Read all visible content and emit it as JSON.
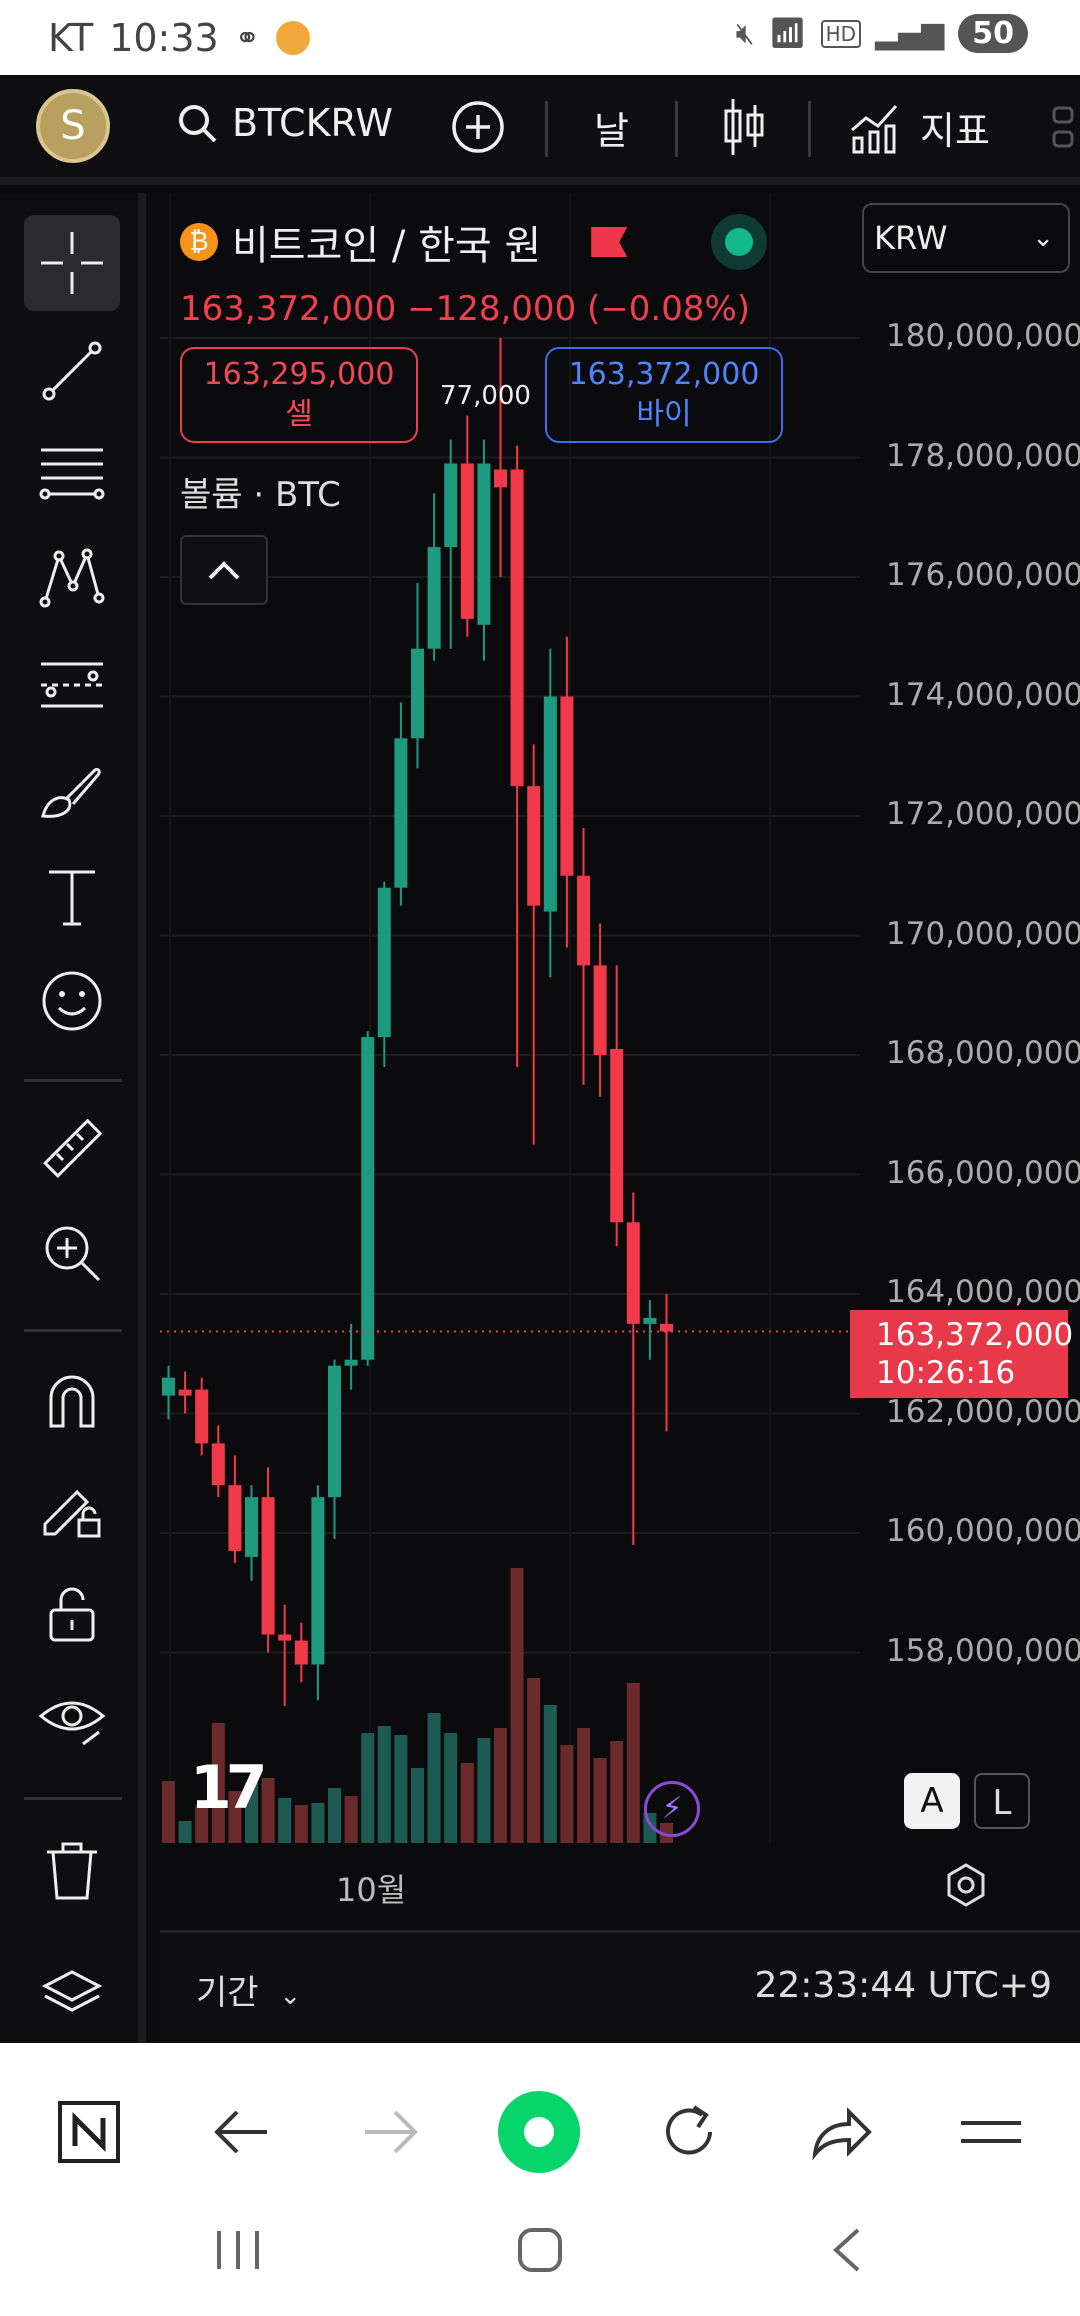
{
  "status_bar": {
    "carrier": "KT",
    "time": "10:33",
    "battery": "50"
  },
  "toolbar": {
    "avatar_letter": "S",
    "symbol": "BTCKRW",
    "interval": "날",
    "indicators": "지표"
  },
  "chart_header": {
    "title": "비트코인 / 한국 원",
    "price_change": "163,372,000  −128,000 (−0.08%)",
    "sell_price": "163,295,000",
    "sell_label": "셀",
    "spread": "77,000",
    "buy_price": "163,372,000",
    "buy_label": "바이",
    "volume_label": "볼륨 · BTC",
    "currency": "KRW"
  },
  "last_price_tag": {
    "price": "163,372,000",
    "countdown": "10:26:16"
  },
  "price_scale_buttons": {
    "auto": "A",
    "log": "L"
  },
  "footer": {
    "period": "기간",
    "clock": "22:33:44 UTC+9"
  },
  "colors": {
    "up": "#1e9b7e",
    "down": "#f03a4a",
    "up_volume": "#1d5a52",
    "down_volume": "#6b2a2c",
    "background": "#0b0b0d"
  },
  "chart_data": {
    "type": "candlestick",
    "x_tick_labels": [
      "10월"
    ],
    "y_ticks": [
      "180,000,000",
      "178,000,000",
      "176,000,000",
      "174,000,000",
      "172,000,000",
      "170,000,000",
      "168,000,000",
      "166,000,000",
      "164,000,000",
      "162,000,000",
      "160,000,000",
      "158,000,000"
    ],
    "ylim": [
      156000000,
      181000000
    ],
    "last_price": 163372000,
    "candles": [
      {
        "o": 162300000,
        "h": 162800000,
        "l": 161900000,
        "c": 162600000
      },
      {
        "o": 162400000,
        "h": 162700000,
        "l": 162000000,
        "c": 162300000
      },
      {
        "o": 162400000,
        "h": 162600000,
        "l": 161300000,
        "c": 161500000
      },
      {
        "o": 161500000,
        "h": 161800000,
        "l": 160600000,
        "c": 160800000
      },
      {
        "o": 160800000,
        "h": 161300000,
        "l": 159500000,
        "c": 159700000
      },
      {
        "o": 159600000,
        "h": 160800000,
        "l": 159200000,
        "c": 160600000
      },
      {
        "o": 160600000,
        "h": 161100000,
        "l": 158000000,
        "c": 158300000
      },
      {
        "o": 158300000,
        "h": 158800000,
        "l": 157100000,
        "c": 158200000
      },
      {
        "o": 158200000,
        "h": 158500000,
        "l": 157500000,
        "c": 157800000
      },
      {
        "o": 157800000,
        "h": 160800000,
        "l": 157200000,
        "c": 160600000
      },
      {
        "o": 160600000,
        "h": 162900000,
        "l": 159900000,
        "c": 162800000
      },
      {
        "o": 162800000,
        "h": 163500000,
        "l": 162400000,
        "c": 162900000
      },
      {
        "o": 162900000,
        "h": 168400000,
        "l": 162800000,
        "c": 168300000
      },
      {
        "o": 168300000,
        "h": 170900000,
        "l": 167800000,
        "c": 170800000
      },
      {
        "o": 170800000,
        "h": 173900000,
        "l": 170500000,
        "c": 173300000
      },
      {
        "o": 173300000,
        "h": 175900000,
        "l": 172800000,
        "c": 174800000
      },
      {
        "o": 174800000,
        "h": 177400000,
        "l": 174600000,
        "c": 176500000
      },
      {
        "o": 176500000,
        "h": 178300000,
        "l": 174800000,
        "c": 177900000
      },
      {
        "o": 177900000,
        "h": 178700000,
        "l": 175000000,
        "c": 175300000
      },
      {
        "o": 175200000,
        "h": 178300000,
        "l": 174600000,
        "c": 177900000
      },
      {
        "o": 177800000,
        "h": 180000000,
        "l": 176000000,
        "c": 177500000
      },
      {
        "o": 177800000,
        "h": 178200000,
        "l": 167800000,
        "c": 172500000
      },
      {
        "o": 172500000,
        "h": 173200000,
        "l": 166500000,
        "c": 170500000
      },
      {
        "o": 170400000,
        "h": 174800000,
        "l": 169300000,
        "c": 174000000
      },
      {
        "o": 174000000,
        "h": 175000000,
        "l": 169800000,
        "c": 171000000
      },
      {
        "o": 171000000,
        "h": 171800000,
        "l": 167500000,
        "c": 169500000
      },
      {
        "o": 169500000,
        "h": 170200000,
        "l": 167300000,
        "c": 168000000
      },
      {
        "o": 168100000,
        "h": 169500000,
        "l": 164800000,
        "c": 165200000
      },
      {
        "o": 165200000,
        "h": 165700000,
        "l": 159800000,
        "c": 163500000
      },
      {
        "o": 163500000,
        "h": 163900000,
        "l": 162900000,
        "c": 163600000
      },
      {
        "o": 163500000,
        "h": 164000000,
        "l": 161700000,
        "c": 163372000
      }
    ],
    "volumes": [
      {
        "v": 0.62,
        "dir": "down"
      },
      {
        "v": 0.22,
        "dir": "up"
      },
      {
        "v": 0.38,
        "dir": "down"
      },
      {
        "v": 1.2,
        "dir": "down"
      },
      {
        "v": 0.52,
        "dir": "down"
      },
      {
        "v": 0.6,
        "dir": "up"
      },
      {
        "v": 0.65,
        "dir": "down"
      },
      {
        "v": 0.45,
        "dir": "up"
      },
      {
        "v": 0.38,
        "dir": "down"
      },
      {
        "v": 0.4,
        "dir": "up"
      },
      {
        "v": 0.55,
        "dir": "up"
      },
      {
        "v": 0.47,
        "dir": "down"
      },
      {
        "v": 1.1,
        "dir": "up"
      },
      {
        "v": 1.17,
        "dir": "up"
      },
      {
        "v": 1.08,
        "dir": "up"
      },
      {
        "v": 0.75,
        "dir": "up"
      },
      {
        "v": 1.3,
        "dir": "up"
      },
      {
        "v": 1.1,
        "dir": "up"
      },
      {
        "v": 0.8,
        "dir": "down"
      },
      {
        "v": 1.05,
        "dir": "up"
      },
      {
        "v": 1.15,
        "dir": "down"
      },
      {
        "v": 2.75,
        "dir": "down"
      },
      {
        "v": 1.65,
        "dir": "down"
      },
      {
        "v": 1.38,
        "dir": "up"
      },
      {
        "v": 0.98,
        "dir": "down"
      },
      {
        "v": 1.15,
        "dir": "down"
      },
      {
        "v": 0.85,
        "dir": "down"
      },
      {
        "v": 1.02,
        "dir": "down"
      },
      {
        "v": 1.6,
        "dir": "down"
      },
      {
        "v": 0.3,
        "dir": "up"
      },
      {
        "v": 0.2,
        "dir": "down"
      }
    ]
  }
}
